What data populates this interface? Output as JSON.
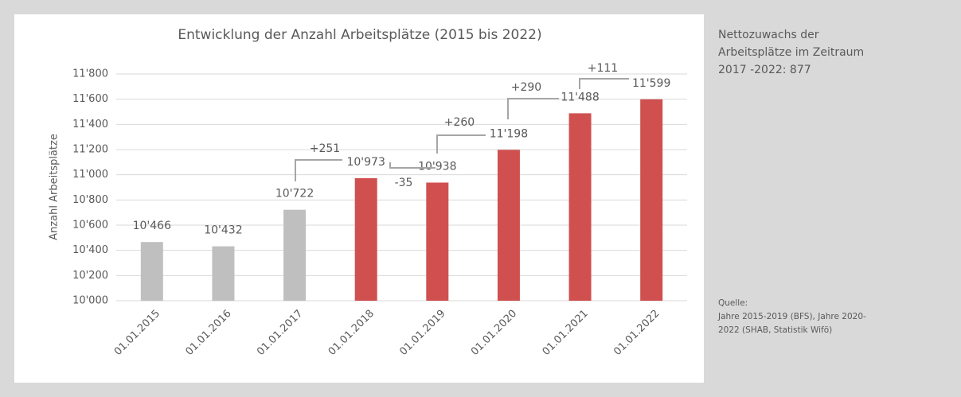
{
  "chart_data": {
    "type": "bar",
    "title": "Entwicklung der Anzahl Arbeitsplätze (2015 bis 2022)",
    "y_label": "Anzahl Arbeitsplätze",
    "categories": [
      "01.01.2015",
      "01.01.2016",
      "01.01.2017",
      "01.01.2018",
      "01.01.2019",
      "01.01.2020",
      "01.01.2021",
      "01.01.2022"
    ],
    "values": [
      10466,
      10432,
      10722,
      10973,
      10938,
      11198,
      11488,
      11599
    ],
    "value_labels": [
      "10'466",
      "10'432",
      "10'722",
      "10'973",
      "10'938",
      "11'198",
      "11'488",
      "11'599"
    ],
    "colors": [
      "#bfbfbf",
      "#bfbfbf",
      "#bfbfbf",
      "#d05050",
      "#d05050",
      "#d05050",
      "#d05050",
      "#d05050"
    ],
    "ylim": [
      10000,
      11800
    ],
    "yticks": [
      {
        "value": 10000,
        "label": "10'000"
      },
      {
        "value": 10200,
        "label": "10'200"
      },
      {
        "value": 10400,
        "label": "10'400"
      },
      {
        "value": 10600,
        "label": "10'600"
      },
      {
        "value": 10800,
        "label": "10'800"
      },
      {
        "value": 11000,
        "label": "11'000"
      },
      {
        "value": 11200,
        "label": "11'200"
      },
      {
        "value": 11400,
        "label": "11'400"
      },
      {
        "value": 11600,
        "label": "11'600"
      },
      {
        "value": 11800,
        "label": "11'800"
      }
    ],
    "grid": true,
    "annotations": [
      "+251",
      "-35",
      "+260",
      "+290",
      "+111"
    ]
  },
  "side_note": {
    "lines": [
      "Nettozuwachs der",
      "Arbeitsplätze im Zeitraum",
      "2017 -2022: 877"
    ]
  },
  "source": {
    "lines": [
      "Quelle:",
      "Jahre 2015-2019 (BFS), Jahre 2020-",
      "2022 (SHAB, Statistik Wifö)"
    ]
  }
}
